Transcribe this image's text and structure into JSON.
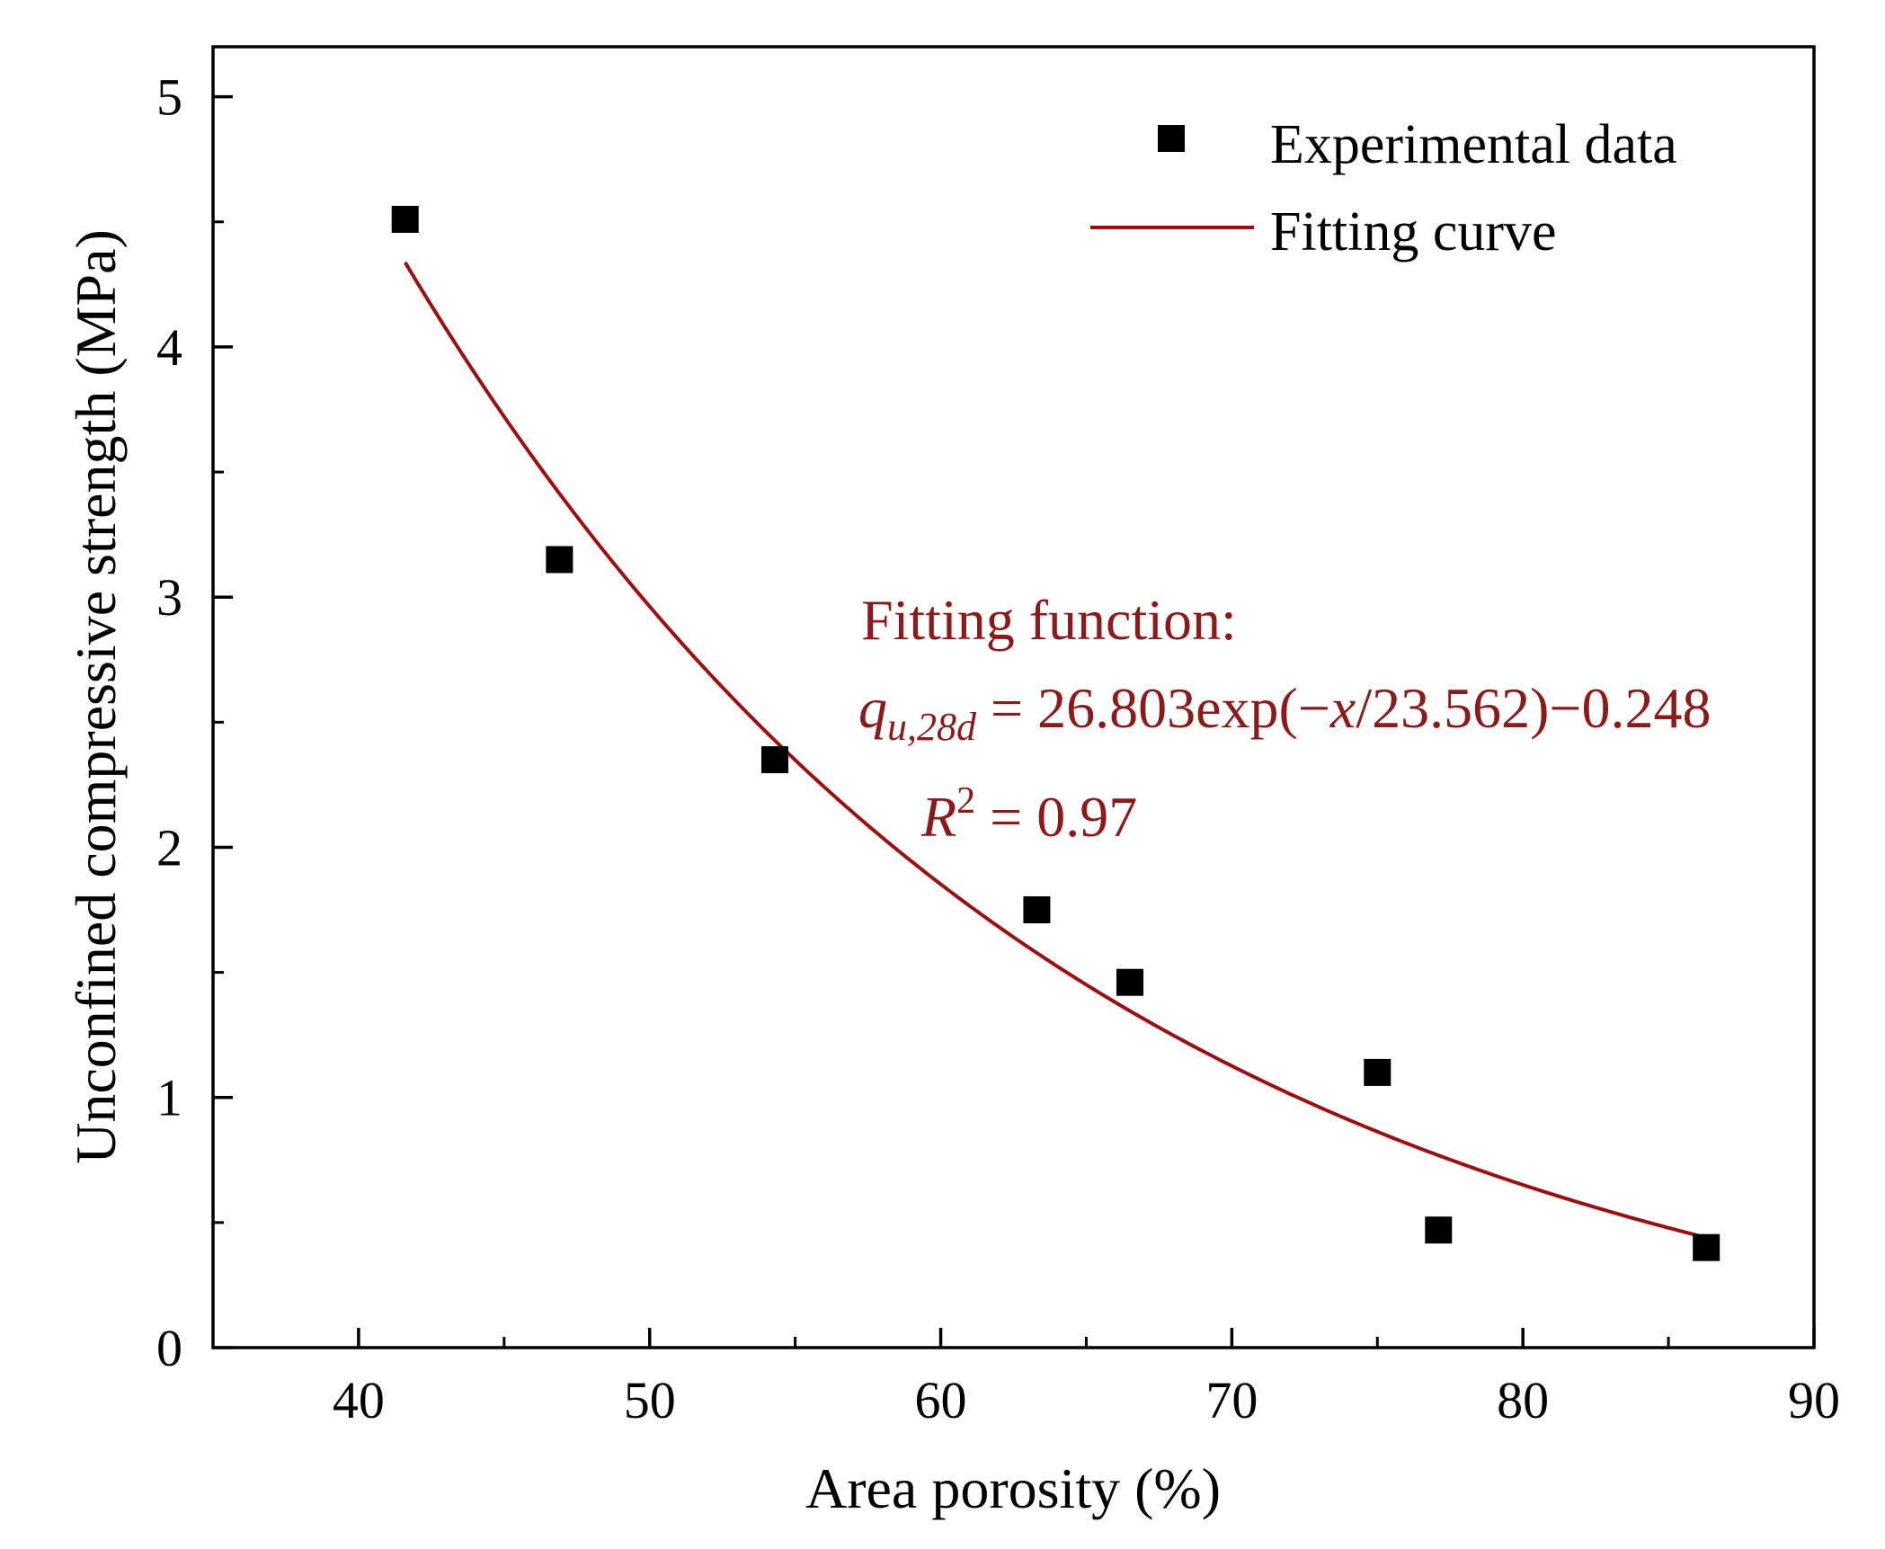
{
  "chart_data": {
    "type": "scatter",
    "xlabel": "Area porosity (%)",
    "ylabel": "Unconfined compressive strength (MPa)",
    "xlim": [
      35,
      90
    ],
    "ylim": [
      0,
      5.2
    ],
    "x_ticks": [
      40,
      50,
      60,
      70,
      80,
      90
    ],
    "y_ticks": [
      0,
      1,
      2,
      3,
      4,
      5
    ],
    "x_tick_labels": [
      "40",
      "50",
      "60",
      "70",
      "80",
      "90"
    ],
    "y_tick_labels": [
      "0",
      "1",
      "2",
      "3",
      "4",
      "5"
    ],
    "grid": false,
    "legend_position": "top-right",
    "series": [
      {
        "name": "Experimental data",
        "kind": "scatter",
        "marker": "square",
        "color": "#000000",
        "x": [
          41.6,
          46.9,
          54.3,
          63.3,
          66.5,
          75.0,
          77.1,
          86.3
        ],
        "y": [
          4.51,
          3.15,
          2.35,
          1.75,
          1.46,
          1.1,
          0.47,
          0.4
        ]
      },
      {
        "name": "Fitting curve",
        "kind": "line",
        "color": "#9a0f0f",
        "x_range": [
          41.6,
          86.3
        ],
        "function": {
          "a": 26.803,
          "b": 23.562,
          "c": -0.248
        }
      }
    ],
    "annotation": {
      "color": "#8b1a1a",
      "heading": "Fitting function:",
      "eq_var": "q",
      "eq_sub": "u,28d",
      "eq_pre": " = 26.803exp(−",
      "eq_x": "x",
      "eq_post": "/23.562)−0.248",
      "r_var": "R",
      "r_sup": "2",
      "r_rest": " = 0.97"
    }
  }
}
